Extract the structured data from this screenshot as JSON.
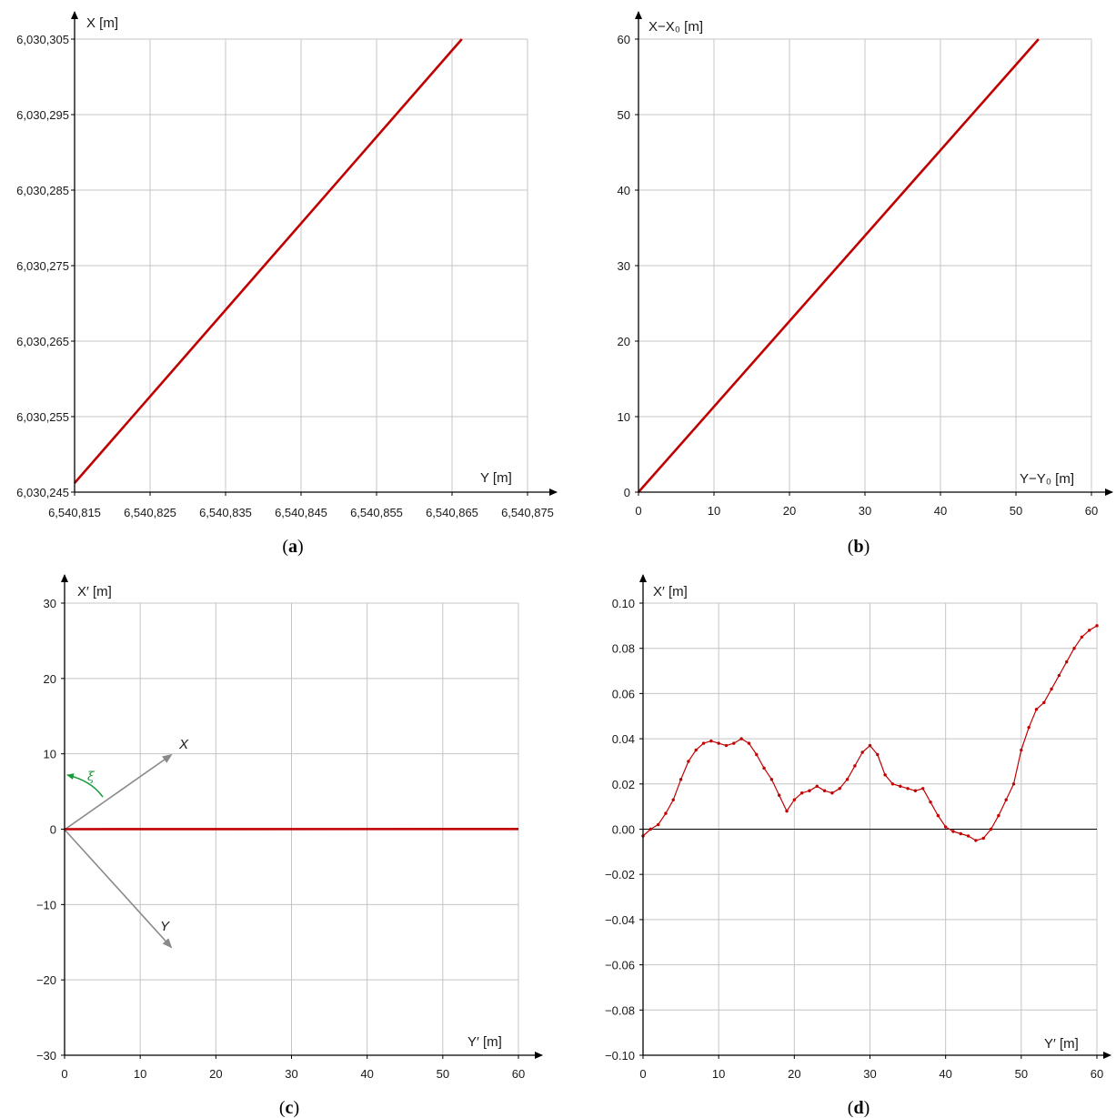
{
  "colors": {
    "series": "#c00000",
    "grid": "#c4c4c4",
    "axis": "#000000",
    "vectors": "#8a8a8a",
    "angle": "#1a9a3a"
  },
  "chart_data": [
    {
      "id": "a",
      "type": "line",
      "panel_label": "a",
      "xlabel": "Y [m]",
      "ylabel": "X [m]",
      "xlim": [
        6540815,
        6540875
      ],
      "ylim": [
        6030245,
        6030305
      ],
      "xticks": [
        6540815,
        6540825,
        6540835,
        6540845,
        6540855,
        6540865,
        6540875
      ],
      "xtick_labels": [
        "6,540,815",
        "6,540,825",
        "6,540,835",
        "6,540,845",
        "6,540,855",
        "6,540,865",
        "6,540,875"
      ],
      "yticks": [
        6030245,
        6030255,
        6030265,
        6030275,
        6030285,
        6030295,
        6030305
      ],
      "ytick_labels": [
        "6,030,245",
        "6,030,255",
        "6,030,265",
        "6,030,275",
        "6,030,285",
        "6,030,295",
        "6,030,305"
      ],
      "grid": true,
      "series": [
        {
          "x": [
            6540815.0,
            6540866.3
          ],
          "y": [
            6030246.2,
            6030305.0
          ]
        }
      ]
    },
    {
      "id": "b",
      "type": "line",
      "panel_label": "b",
      "xlabel": "Y−Y₀ [m]",
      "ylabel": "X−X₀ [m]",
      "xlim": [
        0,
        60
      ],
      "ylim": [
        0,
        60
      ],
      "xticks": [
        0,
        10,
        20,
        30,
        40,
        50,
        60
      ],
      "xtick_labels": [
        "0",
        "10",
        "20",
        "30",
        "40",
        "50",
        "60"
      ],
      "yticks": [
        0,
        10,
        20,
        30,
        40,
        50,
        60
      ],
      "ytick_labels": [
        "0",
        "10",
        "20",
        "30",
        "40",
        "50",
        "60"
      ],
      "grid": true,
      "series": [
        {
          "x": [
            0,
            53.0
          ],
          "y": [
            0,
            60.0
          ]
        }
      ]
    },
    {
      "id": "c",
      "type": "line",
      "panel_label": "c",
      "xlabel": "Y′ [m]",
      "ylabel": "X′ [m]",
      "xlim": [
        0,
        60
      ],
      "ylim": [
        -30,
        30
      ],
      "xticks": [
        0,
        10,
        20,
        30,
        40,
        50,
        60
      ],
      "xtick_labels": [
        "0",
        "10",
        "20",
        "30",
        "40",
        "50",
        "60"
      ],
      "yticks": [
        -30,
        -20,
        -10,
        0,
        10,
        20,
        30
      ],
      "ytick_labels": [
        "−30",
        "−20",
        "−10",
        "0",
        "10",
        "20",
        "30"
      ],
      "grid": true,
      "series": [
        {
          "x": [
            0,
            60
          ],
          "y": [
            0,
            0.02
          ]
        }
      ],
      "annotations": {
        "vector_x_label": "X",
        "vector_y_label": "Y",
        "angle_label": "ξ"
      }
    },
    {
      "id": "d",
      "type": "line",
      "panel_label": "d",
      "xlabel": "Y′ [m]",
      "ylabel": "X′ [m]",
      "xlim": [
        0,
        60
      ],
      "ylim": [
        -0.1,
        0.1
      ],
      "xticks": [
        0,
        10,
        20,
        30,
        40,
        50,
        60
      ],
      "xtick_labels": [
        "0",
        "10",
        "20",
        "30",
        "40",
        "50",
        "60"
      ],
      "yticks": [
        -0.1,
        -0.08,
        -0.06,
        -0.04,
        -0.02,
        0,
        0.02,
        0.04,
        0.06,
        0.08,
        0.1
      ],
      "ytick_labels": [
        "−0.10",
        "−0.08",
        "−0.06",
        "−0.04",
        "−0.02",
        "0.00",
        "0.02",
        "0.04",
        "0.06",
        "0.08",
        "0.10"
      ],
      "grid": true,
      "zero_line": true,
      "markers": true,
      "series": [
        {
          "x": [
            0,
            1,
            2,
            3,
            4,
            5,
            6,
            7,
            8,
            9,
            10,
            11,
            12,
            13,
            14,
            15,
            16,
            17,
            18,
            19,
            20,
            21,
            22,
            23,
            24,
            25,
            26,
            27,
            28,
            29,
            30,
            31,
            32,
            33,
            34,
            35,
            36,
            37,
            38,
            39,
            40,
            41,
            42,
            43,
            44,
            45,
            46,
            47,
            48,
            49,
            50,
            51,
            52,
            53,
            54,
            55,
            56,
            57,
            58,
            59,
            60
          ],
          "y": [
            -0.003,
            0.0,
            0.002,
            0.007,
            0.013,
            0.022,
            0.03,
            0.035,
            0.038,
            0.039,
            0.038,
            0.037,
            0.038,
            0.04,
            0.038,
            0.033,
            0.027,
            0.022,
            0.015,
            0.008,
            0.013,
            0.016,
            0.017,
            0.019,
            0.017,
            0.016,
            0.018,
            0.022,
            0.028,
            0.034,
            0.037,
            0.033,
            0.024,
            0.02,
            0.019,
            0.018,
            0.017,
            0.018,
            0.012,
            0.006,
            0.001,
            -0.001,
            -0.002,
            -0.003,
            -0.005,
            -0.004,
            0.0,
            0.006,
            0.013,
            0.02,
            0.035,
            0.045,
            0.053,
            0.056,
            0.062,
            0.068,
            0.074,
            0.08,
            0.085,
            0.088,
            0.09
          ]
        }
      ]
    }
  ]
}
